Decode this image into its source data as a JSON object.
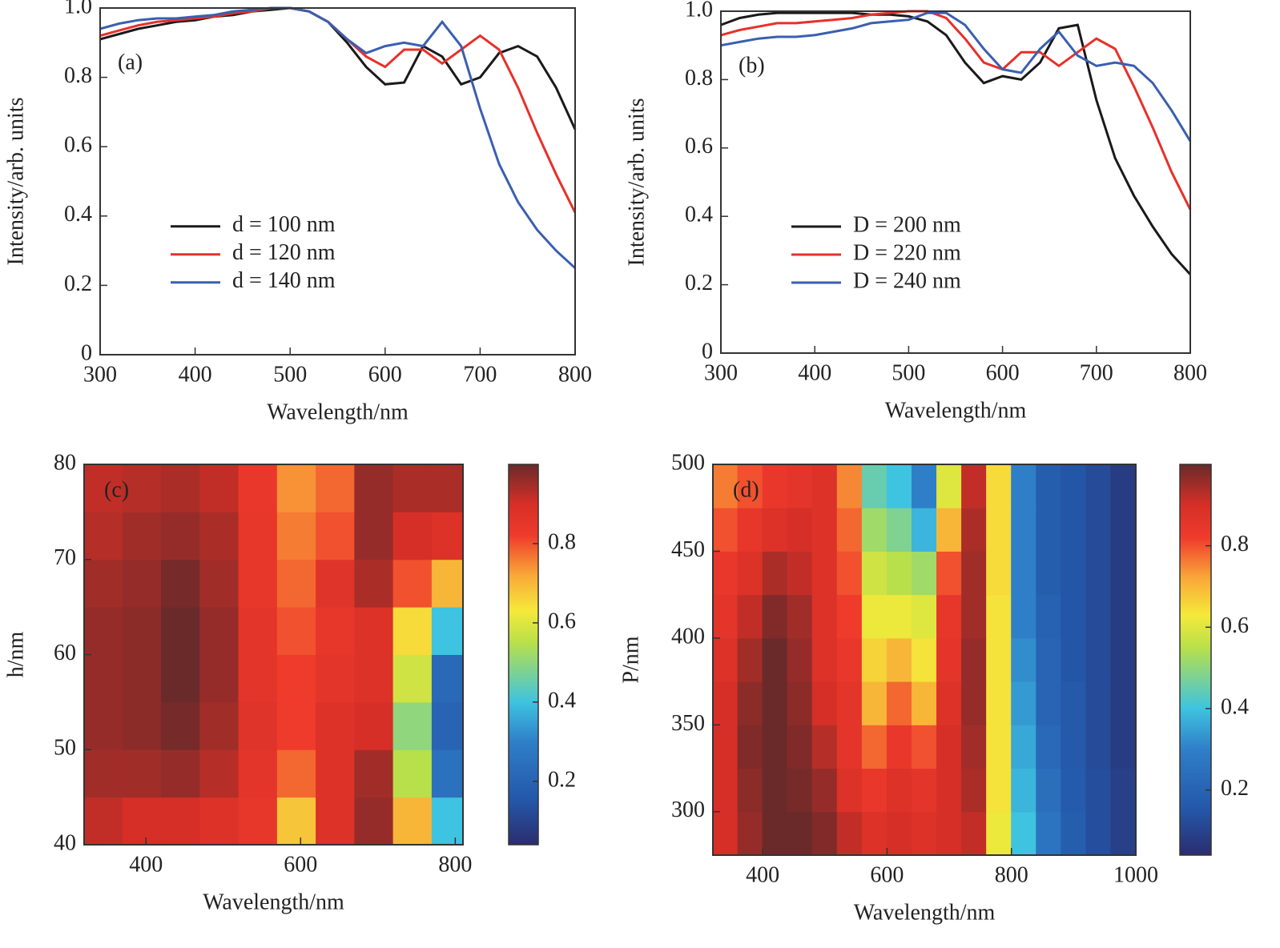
{
  "chart_data": [
    {
      "type": "line",
      "label": "(a)",
      "x_label": "Wavelength/nm",
      "y_label": "Intensity/arb. units",
      "x": [
        300,
        320,
        340,
        360,
        380,
        400,
        420,
        440,
        460,
        480,
        500,
        520,
        540,
        560,
        580,
        600,
        620,
        640,
        660,
        680,
        700,
        720,
        740,
        760,
        780,
        800
      ],
      "series": [
        {
          "name": "d = 100 nm",
          "color": "#1a1a1a",
          "values": [
            0.91,
            0.925,
            0.94,
            0.95,
            0.96,
            0.965,
            0.975,
            0.98,
            0.99,
            0.995,
            1.0,
            0.99,
            0.96,
            0.9,
            0.83,
            0.78,
            0.785,
            0.89,
            0.86,
            0.78,
            0.8,
            0.87,
            0.89,
            0.86,
            0.77,
            0.65
          ]
        },
        {
          "name": "d = 120 nm",
          "color": "#e8302a",
          "values": [
            0.92,
            0.935,
            0.95,
            0.96,
            0.965,
            0.97,
            0.975,
            0.985,
            0.99,
            1.0,
            1.0,
            0.99,
            0.96,
            0.91,
            0.86,
            0.83,
            0.88,
            0.88,
            0.84,
            0.88,
            0.92,
            0.88,
            0.77,
            0.64,
            0.52,
            0.41
          ]
        },
        {
          "name": "d = 140 nm",
          "color": "#3a5fb0",
          "values": [
            0.94,
            0.955,
            0.965,
            0.97,
            0.97,
            0.975,
            0.98,
            0.99,
            0.995,
            1.0,
            1.0,
            0.99,
            0.96,
            0.91,
            0.87,
            0.89,
            0.9,
            0.89,
            0.96,
            0.89,
            0.71,
            0.55,
            0.44,
            0.36,
            0.3,
            0.25
          ]
        }
      ],
      "xlim": [
        300,
        800
      ],
      "ylim": [
        0,
        1
      ],
      "xticks": [
        300,
        400,
        500,
        600,
        700,
        800
      ],
      "yticks": [
        0,
        0.2,
        0.4,
        0.6,
        0.8,
        {
          "value": 1,
          "label": "1.0"
        }
      ],
      "legend": "center left"
    },
    {
      "type": "line",
      "label": "(b)",
      "x_label": "Wavelength/nm",
      "y_label": "Intensity/arb. units",
      "x": [
        300,
        320,
        340,
        360,
        380,
        400,
        420,
        440,
        460,
        480,
        500,
        520,
        540,
        560,
        580,
        600,
        620,
        640,
        660,
        680,
        700,
        720,
        740,
        760,
        780,
        800
      ],
      "series": [
        {
          "name": "D = 200 nm",
          "color": "#1a1a1a",
          "values": [
            0.96,
            0.98,
            0.99,
            0.995,
            0.995,
            0.995,
            0.995,
            0.995,
            0.99,
            0.99,
            0.985,
            0.97,
            0.93,
            0.85,
            0.79,
            0.81,
            0.8,
            0.85,
            0.95,
            0.96,
            0.74,
            0.57,
            0.46,
            0.37,
            0.29,
            0.23
          ]
        },
        {
          "name": "D = 220 nm",
          "color": "#e8302a",
          "values": [
            0.93,
            0.945,
            0.955,
            0.965,
            0.965,
            0.97,
            0.975,
            0.98,
            0.99,
            0.995,
            1.0,
            1.0,
            0.98,
            0.92,
            0.85,
            0.83,
            0.88,
            0.88,
            0.84,
            0.88,
            0.92,
            0.89,
            0.78,
            0.66,
            0.53,
            0.42
          ]
        },
        {
          "name": "D = 240 nm",
          "color": "#3a5fb0",
          "values": [
            0.9,
            0.91,
            0.92,
            0.925,
            0.925,
            0.93,
            0.94,
            0.95,
            0.965,
            0.97,
            0.975,
            0.995,
            0.995,
            0.96,
            0.89,
            0.83,
            0.82,
            0.89,
            0.94,
            0.87,
            0.84,
            0.85,
            0.84,
            0.79,
            0.71,
            0.62
          ]
        }
      ],
      "xlim": [
        300,
        800
      ],
      "ylim": [
        0,
        1
      ],
      "xticks": [
        300,
        400,
        500,
        600,
        700,
        800
      ],
      "yticks": [
        0,
        0.2,
        0.4,
        0.6,
        0.8,
        {
          "value": 1,
          "label": "1.0"
        }
      ],
      "legend": "center left"
    },
    {
      "type": "heatmap",
      "label": "(c)",
      "x_label": "Wavelength/nm",
      "y_label": "h/nm",
      "x": [
        345,
        395,
        445,
        495,
        545,
        595,
        645,
        695,
        745,
        795
      ],
      "y": [
        42.5,
        47.5,
        52.5,
        57.5,
        62.5,
        67.5,
        72.5,
        77.5
      ],
      "z": [
        [
          0.92,
          0.9,
          0.9,
          0.88,
          0.85,
          0.68,
          0.88,
          0.96,
          0.7,
          0.4
        ],
        [
          0.95,
          0.95,
          0.96,
          0.93,
          0.86,
          0.78,
          0.88,
          0.95,
          0.55,
          0.25
        ],
        [
          0.96,
          0.97,
          0.99,
          0.95,
          0.87,
          0.82,
          0.88,
          0.9,
          0.5,
          0.2
        ],
        [
          0.96,
          0.97,
          1.0,
          0.96,
          0.86,
          0.82,
          0.86,
          0.88,
          0.58,
          0.22
        ],
        [
          0.96,
          0.97,
          1.0,
          0.96,
          0.86,
          0.8,
          0.85,
          0.88,
          0.65,
          0.4
        ],
        [
          0.95,
          0.96,
          0.99,
          0.95,
          0.85,
          0.78,
          0.87,
          0.94,
          0.8,
          0.7
        ],
        [
          0.93,
          0.95,
          0.96,
          0.94,
          0.85,
          0.76,
          0.8,
          0.96,
          0.9,
          0.88
        ],
        [
          0.92,
          0.93,
          0.94,
          0.92,
          0.84,
          0.74,
          0.78,
          0.96,
          0.94,
          0.94
        ]
      ],
      "xlim": [
        320,
        810
      ],
      "ylim": [
        40,
        80
      ],
      "xticks": [
        400,
        600,
        800
      ],
      "yticks": [
        40,
        50,
        60,
        70,
        80
      ],
      "zlim": [
        0.04,
        1.0
      ],
      "colorbar_ticks": [
        0.2,
        0.4,
        0.6,
        0.8
      ],
      "colorscale": [
        [
          0.04,
          "#2b2d6e"
        ],
        [
          0.15,
          "#2456a8"
        ],
        [
          0.3,
          "#2f7fc8"
        ],
        [
          0.4,
          "#3ec3e0"
        ],
        [
          0.55,
          "#b8e04a"
        ],
        [
          0.63,
          "#f5e93a"
        ],
        [
          0.72,
          "#f9a838"
        ],
        [
          0.82,
          "#ef3b2c"
        ],
        [
          0.9,
          "#d62f27"
        ],
        [
          1.0,
          "#6b2a2a"
        ]
      ]
    },
    {
      "type": "heatmap",
      "label": "(d)",
      "x_label": "Wavelength/nm",
      "y_label": "P/nm",
      "x": [
        340,
        380,
        420,
        460,
        500,
        540,
        580,
        620,
        660,
        700,
        740,
        780,
        820,
        860,
        900,
        940,
        980
      ],
      "y": [
        287.5,
        312.5,
        337.5,
        362.5,
        387.5,
        412.5,
        437.5,
        462.5,
        487.5
      ],
      "z": [
        [
          0.9,
          0.96,
          1.0,
          1.0,
          0.98,
          0.92,
          0.88,
          0.9,
          0.88,
          0.9,
          0.92,
          0.62,
          0.4,
          0.26,
          0.18,
          0.13,
          0.09
        ],
        [
          0.9,
          0.97,
          1.0,
          0.99,
          0.96,
          0.88,
          0.84,
          0.88,
          0.86,
          0.9,
          0.94,
          0.64,
          0.38,
          0.24,
          0.17,
          0.13,
          0.09
        ],
        [
          0.9,
          0.98,
          1.0,
          0.98,
          0.93,
          0.86,
          0.78,
          0.84,
          0.8,
          0.9,
          0.95,
          0.64,
          0.36,
          0.22,
          0.16,
          0.12,
          0.08
        ],
        [
          0.9,
          0.97,
          1.0,
          0.97,
          0.9,
          0.86,
          0.7,
          0.78,
          0.7,
          0.88,
          0.96,
          0.64,
          0.34,
          0.2,
          0.16,
          0.12,
          0.08
        ],
        [
          0.88,
          0.95,
          1.0,
          0.96,
          0.88,
          0.84,
          0.66,
          0.7,
          0.64,
          0.86,
          0.96,
          0.64,
          0.32,
          0.2,
          0.15,
          0.12,
          0.08
        ],
        [
          0.86,
          0.92,
          0.98,
          0.95,
          0.88,
          0.82,
          0.62,
          0.62,
          0.6,
          0.85,
          0.95,
          0.64,
          0.3,
          0.19,
          0.15,
          0.12,
          0.08
        ],
        [
          0.84,
          0.88,
          0.94,
          0.92,
          0.88,
          0.8,
          0.58,
          0.55,
          0.52,
          0.8,
          0.95,
          0.65,
          0.3,
          0.18,
          0.15,
          0.12,
          0.08
        ],
        [
          0.8,
          0.85,
          0.88,
          0.9,
          0.88,
          0.78,
          0.52,
          0.48,
          0.38,
          0.7,
          0.94,
          0.65,
          0.3,
          0.18,
          0.15,
          0.12,
          0.08
        ],
        [
          0.76,
          0.8,
          0.84,
          0.86,
          0.88,
          0.75,
          0.45,
          0.4,
          0.3,
          0.6,
          0.92,
          0.65,
          0.3,
          0.18,
          0.15,
          0.12,
          0.08
        ]
      ],
      "xlim": [
        320,
        1000
      ],
      "ylim": [
        275,
        500
      ],
      "xticks": [
        400,
        600,
        800,
        1000
      ],
      "yticks": [
        300,
        350,
        400,
        450,
        500
      ],
      "zlim": [
        0.04,
        1.0
      ],
      "colorbar_ticks": [
        0.2,
        0.4,
        0.6,
        0.8
      ],
      "colorscale": [
        [
          0.04,
          "#2b2d6e"
        ],
        [
          0.15,
          "#2456a8"
        ],
        [
          0.3,
          "#2f7fc8"
        ],
        [
          0.4,
          "#3ec3e0"
        ],
        [
          0.55,
          "#b8e04a"
        ],
        [
          0.63,
          "#f5e93a"
        ],
        [
          0.72,
          "#f9a838"
        ],
        [
          0.82,
          "#ef3b2c"
        ],
        [
          0.9,
          "#d62f27"
        ],
        [
          1.0,
          "#6b2a2a"
        ]
      ]
    }
  ]
}
